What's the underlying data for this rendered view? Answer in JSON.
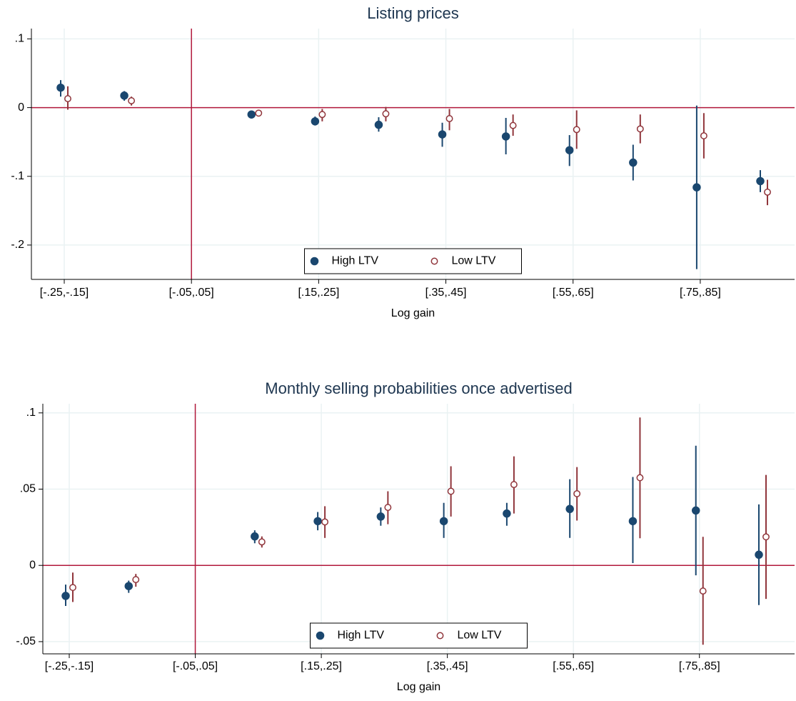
{
  "chart_data": [
    {
      "type": "errorbar",
      "title": "Listing prices",
      "x_label": "Log gain",
      "categories": [
        "[-.25,-.15]",
        null,
        "[-.05,.05]",
        null,
        "[.15,.25]",
        null,
        "[.35,.45]",
        null,
        "[.55,.65]",
        null,
        "[.75,.85]",
        null
      ],
      "ylim": [
        -0.25,
        0.115
      ],
      "yticks": [
        {
          "value": 0.1,
          "label": ".1"
        },
        0,
        {
          "value": -0.1,
          "label": "-.1"
        },
        {
          "value": -0.2,
          "label": "-.2"
        }
      ],
      "grid": true,
      "hline": 0,
      "vline_category": 2,
      "ref_color": "#b2183b",
      "legend": "bottom-center",
      "series": [
        {
          "name": "High LTV",
          "color": "#1a476f",
          "marker": "filled",
          "values": [
            0.029,
            0.0175,
            null,
            -0.01,
            -0.02,
            -0.025,
            -0.039,
            -0.042,
            -0.062,
            -0.08,
            -0.116,
            -0.107
          ],
          "lower": [
            0.016,
            0.01,
            null,
            -0.013,
            -0.026,
            -0.035,
            -0.057,
            -0.068,
            -0.085,
            -0.106,
            -0.235,
            -0.123
          ],
          "upper": [
            0.04,
            0.024,
            null,
            -0.007,
            -0.013,
            -0.014,
            -0.022,
            -0.015,
            -0.04,
            -0.054,
            0.003,
            -0.091
          ]
        },
        {
          "name": "Low LTV",
          "color": "#90353b",
          "marker": "hollow",
          "values": [
            0.013,
            0.01,
            null,
            -0.008,
            -0.01,
            -0.009,
            -0.016,
            -0.026,
            -0.032,
            -0.031,
            -0.041,
            -0.123
          ],
          "lower": [
            -0.003,
            0.003,
            null,
            -0.012,
            -0.02,
            -0.02,
            -0.033,
            -0.041,
            -0.06,
            -0.052,
            -0.074,
            -0.142
          ],
          "upper": [
            0.031,
            0.016,
            null,
            -0.004,
            -0.002,
            0.001,
            -0.002,
            -0.01,
            -0.004,
            -0.01,
            -0.008,
            -0.105
          ]
        }
      ]
    },
    {
      "type": "errorbar",
      "title": "Monthly selling probabilities once advertised",
      "x_label": "Log gain",
      "categories": [
        "[-.25,-.15]",
        null,
        "[-.05,.05]",
        null,
        "[.15,.25]",
        null,
        "[.35,.45]",
        null,
        "[.55,.65]",
        null,
        "[.75,.85]",
        null
      ],
      "ylim": [
        -0.058,
        0.106
      ],
      "yticks": [
        {
          "value": 0.1,
          "label": ".1"
        },
        {
          "value": 0.05,
          "label": ".05"
        },
        0,
        {
          "value": -0.05,
          "label": "-.05"
        }
      ],
      "grid": true,
      "hline": 0,
      "vline_category": 2,
      "ref_color": "#b2183b",
      "legend": "bottom-center",
      "series": [
        {
          "name": "High LTV",
          "color": "#1a476f",
          "marker": "filled",
          "values": [
            -0.02,
            -0.0136,
            null,
            0.019,
            0.029,
            0.032,
            0.029,
            0.034,
            0.037,
            0.029,
            0.036,
            0.007
          ],
          "lower": [
            -0.0266,
            -0.018,
            null,
            0.0145,
            0.023,
            0.026,
            0.018,
            0.026,
            0.018,
            0.0015,
            -0.0065,
            -0.026
          ],
          "upper": [
            -0.0126,
            -0.01,
            null,
            0.023,
            0.035,
            0.038,
            0.041,
            0.041,
            0.0565,
            0.058,
            0.0785,
            0.04
          ]
        },
        {
          "name": "Low LTV",
          "color": "#90353b",
          "marker": "hollow",
          "values": [
            -0.0145,
            -0.0093,
            null,
            0.0154,
            0.0285,
            0.038,
            0.0486,
            0.053,
            0.047,
            0.0575,
            -0.0168,
            0.0187
          ],
          "lower": [
            -0.024,
            -0.014,
            null,
            0.0117,
            0.018,
            0.027,
            0.032,
            0.034,
            0.0294,
            0.0178,
            -0.052,
            -0.022
          ],
          "upper": [
            -0.0047,
            -0.0056,
            null,
            0.019,
            0.0388,
            0.0486,
            0.065,
            0.0715,
            0.0645,
            0.097,
            0.0187,
            0.0593
          ]
        }
      ]
    }
  ]
}
